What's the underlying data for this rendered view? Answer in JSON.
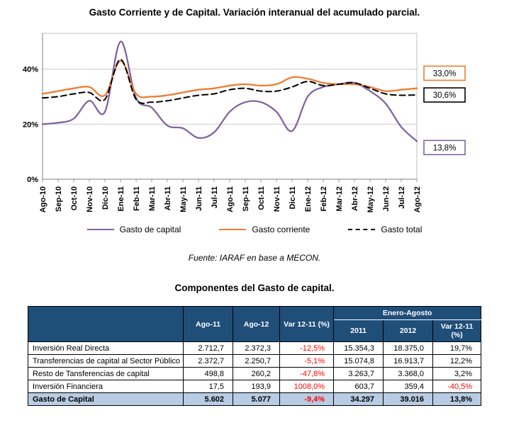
{
  "colors": {
    "header_blue": "#1F4E79",
    "total_row_blue": "#B8CCE4",
    "negative_red": "#FF0000",
    "capital_purple": "#8064A2",
    "corriente_orange": "#ED7D31",
    "total_black": "#000000",
    "gridline_gray": "#C9C9C9",
    "axis_gray": "#808080"
  },
  "source_note": "Fuente: IARAF en base a MECON.",
  "chart_data": [
    {
      "type": "line",
      "title": "Gasto Corriente y de Capital. Variación interanual del acumulado parcial.",
      "unit": "%",
      "ylim": [
        0,
        53
      ],
      "yticks": [
        0,
        20,
        40
      ],
      "ytick_suffix": "%",
      "grid": true,
      "legend_position": "bottom",
      "categories": [
        "Ago-10",
        "Sep-10",
        "Oct-10",
        "Nov-10",
        "Dic-10",
        "Ene-11",
        "Feb-11",
        "Mar-11",
        "Abr-11",
        "May-11",
        "Jun-11",
        "Jul-11",
        "Ago-11",
        "Sep-11",
        "Oct-11",
        "Nov-11",
        "Dic-11",
        "Ene-12",
        "Feb-12",
        "Mar-12",
        "Abr-12",
        "May-12",
        "Jun-12",
        "Jul-12",
        "Ago-12"
      ],
      "series": [
        {
          "name": "Gasto de capital",
          "color": "#8064A2",
          "dash": "solid",
          "values": [
            20,
            20.5,
            22,
            28.5,
            24.5,
            50,
            29.5,
            26,
            19.5,
            18.5,
            15,
            17,
            24.5,
            28,
            28,
            24.5,
            17.5,
            30,
            33.5,
            34.5,
            35,
            32,
            27.5,
            19,
            13.8
          ]
        },
        {
          "name": "Gasto corriente",
          "color": "#ED7D31",
          "dash": "solid",
          "values": [
            31,
            32,
            33,
            33.5,
            30.5,
            43,
            31,
            30,
            30.5,
            31.5,
            32.5,
            33,
            34,
            34.5,
            34,
            34.5,
            37,
            36.5,
            35,
            34.5,
            34.5,
            33.5,
            32,
            32.5,
            33
          ]
        },
        {
          "name": "Gasto total",
          "color": "#000000",
          "dash": "dashed",
          "values": [
            29.5,
            30,
            31,
            31.5,
            29,
            43.5,
            29,
            28,
            28.5,
            29.5,
            30.5,
            31,
            32.5,
            33,
            32,
            32,
            33.5,
            35.5,
            34,
            34.5,
            35,
            33,
            31,
            30.5,
            30.6
          ]
        }
      ],
      "end_labels": [
        {
          "text": "33,0%",
          "series": "Gasto corriente",
          "color": "#ED7D31",
          "anchor_value": 38.5
        },
        {
          "text": "30,6%",
          "series": "Gasto total",
          "color": "#000000",
          "anchor_value": 30.6
        },
        {
          "text": "13,8%",
          "series": "Gasto de capital",
          "color": "#8064A2",
          "anchor_value": 11.5
        }
      ]
    },
    {
      "type": "table",
      "title": "Componentes del Gasto de capital.",
      "header": {
        "corner": "",
        "columns": [
          "Ago-11",
          "Ago-12",
          "Var 12-11 (%)"
        ],
        "group_label": "Enero-Agosto",
        "group_columns": [
          "2011",
          "2012",
          "Var 12-11 (%)"
        ]
      },
      "rows": [
        {
          "label": "Inversión Real Directa",
          "values": [
            "2.712,7",
            "2.372,3",
            "-12,5%",
            "15.354,3",
            "18.375,0",
            "19,7%"
          ],
          "red_cols": [
            2
          ]
        },
        {
          "label": "Transferencias de capital al Sector Público",
          "values": [
            "2.372,7",
            "2.250,7",
            "-5,1%",
            "15.074,8",
            "16.913,7",
            "12,2%"
          ],
          "red_cols": [
            2
          ]
        },
        {
          "label": "Resto de Tansferencias de capital",
          "values": [
            "498,8",
            "260,2",
            "-47,8%",
            "3.263,7",
            "3.368,0",
            "3,2%"
          ],
          "red_cols": [
            2
          ]
        },
        {
          "label": "Inversión Financiera",
          "values": [
            "17,5",
            "193,9",
            "1008,0%",
            "603,7",
            "359,4",
            "-40,5%"
          ],
          "red_cols": [
            2,
            5
          ]
        },
        {
          "label": "Gasto de Capital",
          "values": [
            "5.602",
            "5.077",
            "-9,4%",
            "34.297",
            "39.016",
            "13,8%"
          ],
          "red_cols": [
            2
          ],
          "is_total": true
        }
      ]
    }
  ]
}
